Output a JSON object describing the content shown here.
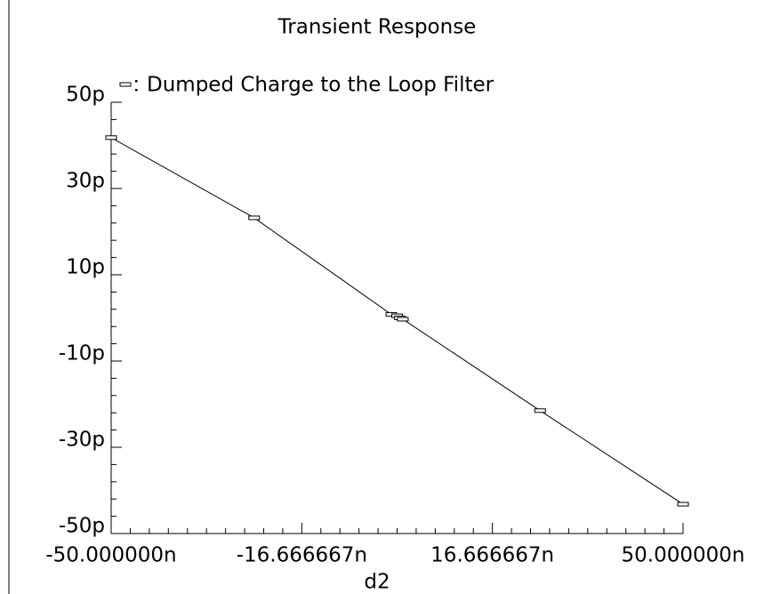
{
  "chart_data": {
    "type": "line",
    "title": "Transient Response",
    "xlabel": "d2",
    "x": [
      -50,
      -25,
      -1,
      0,
      0.5,
      1,
      25,
      50
    ],
    "series": [
      {
        "name": "Dumped Charge to the Loop Filter",
        "color": "#000000",
        "values": [
          41.8,
          23.2,
          0.8,
          0.5,
          0,
          -0.3,
          -21.5,
          -43.2
        ]
      }
    ],
    "xlim": [
      -50,
      50
    ],
    "xticks": [
      {
        "value": -50,
        "label": "-50.000000n"
      },
      {
        "value": -16.666667,
        "label": "-16.666667n"
      },
      {
        "value": 16.666667,
        "label": "16.666667n"
      },
      {
        "value": 50,
        "label": "50.000000n"
      }
    ],
    "ylim": [
      -50,
      50
    ],
    "yticks": [
      {
        "value": 50,
        "label": "50p"
      },
      {
        "value": 30,
        "label": "30p"
      },
      {
        "value": 10,
        "label": "10p"
      },
      {
        "value": -10,
        "label": "-10p"
      },
      {
        "value": -30,
        "label": "-30p"
      },
      {
        "value": -50,
        "label": "-50p"
      }
    ]
  }
}
